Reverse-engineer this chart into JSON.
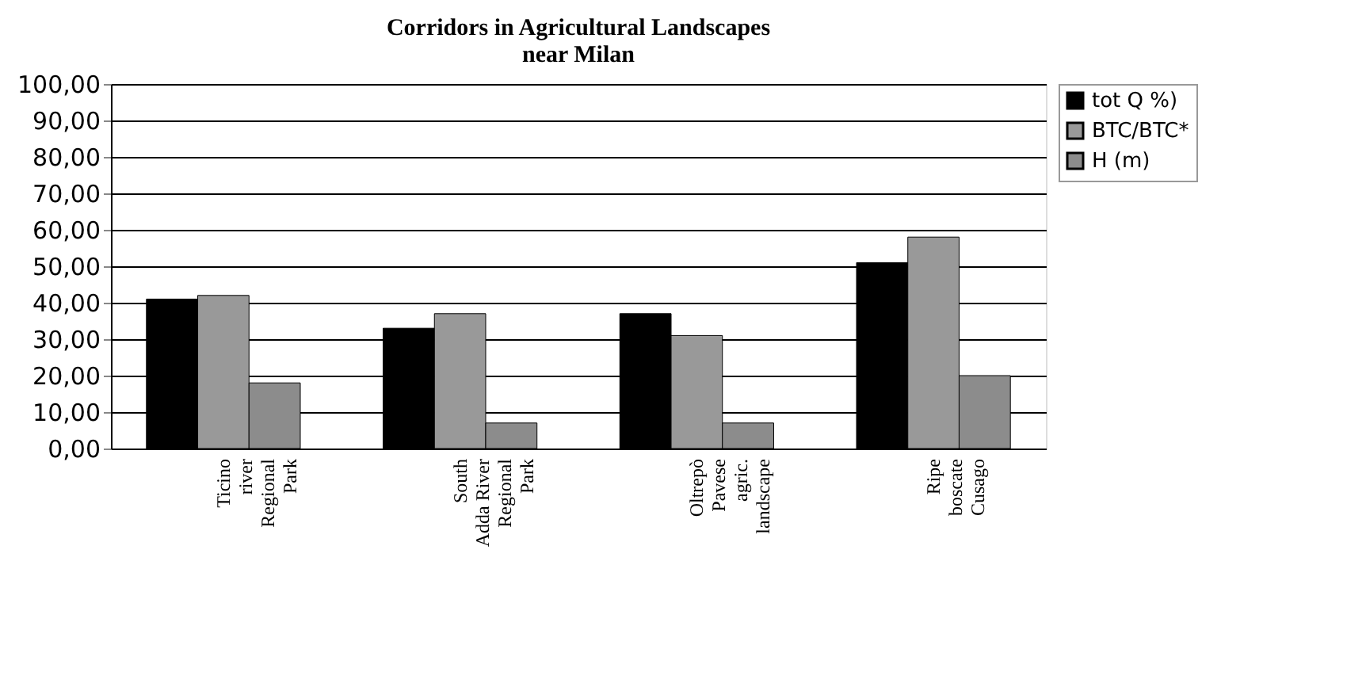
{
  "chart_data": {
    "type": "bar",
    "title": "Corridors in Agricultural Landscapes\nnear Milan",
    "categories": [
      "Ticino\nriver\nRegional\nPark",
      "South\nAdda River\nRegional\nPark",
      "Oltrepò\nPavese\nagric.\nlandscape",
      "Ripe\nboscate\nCusago"
    ],
    "series": [
      {
        "name": "tot Q %)",
        "color": "#000000",
        "values": [
          41,
          33,
          37,
          51
        ]
      },
      {
        "name": "BTC/BTC*",
        "color": "#999999",
        "values": [
          42,
          37,
          31,
          58
        ]
      },
      {
        "name": "H (m)",
        "color": "#8c8c8c",
        "values": [
          18,
          7,
          7,
          20
        ]
      }
    ],
    "ylim": [
      0,
      100
    ],
    "yticks": [
      {
        "value": 0,
        "label": "0,00"
      },
      {
        "value": 10,
        "label": "10,00"
      },
      {
        "value": 20,
        "label": "20,00"
      },
      {
        "value": 30,
        "label": "30,00"
      },
      {
        "value": 40,
        "label": "40,00"
      },
      {
        "value": 50,
        "label": "50,00"
      },
      {
        "value": 60,
        "label": "60,00"
      },
      {
        "value": 70,
        "label": "70,00"
      },
      {
        "value": 80,
        "label": "80,00"
      },
      {
        "value": 90,
        "label": "90,00"
      },
      {
        "value": 100,
        "label": "100,00"
      }
    ],
    "grid": "y",
    "legend": "top right"
  }
}
